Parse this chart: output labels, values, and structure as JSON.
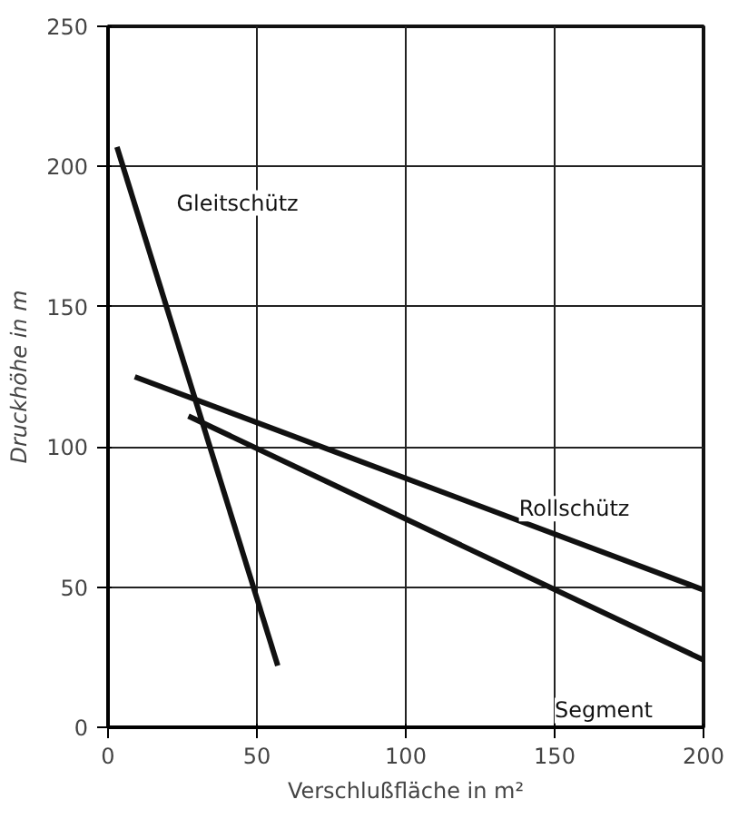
{
  "chart_data": {
    "type": "line",
    "xlabel": "Verschlußfläche in m²",
    "ylabel": "Druckhöhe in m",
    "xlim": [
      0,
      200
    ],
    "ylim": [
      0,
      250
    ],
    "xticks": [
      0,
      50,
      100,
      150,
      200
    ],
    "yticks": [
      0,
      50,
      100,
      150,
      200,
      250
    ],
    "grid": true,
    "marker": "none",
    "line_style": "solid",
    "series": [
      {
        "name": "Gleitschütz",
        "color": "#111111",
        "x": [
          3,
          57
        ],
        "values": [
          207,
          22
        ]
      },
      {
        "name": "Rollschütz",
        "color": "#111111",
        "x": [
          9,
          200
        ],
        "values": [
          125,
          49
        ]
      },
      {
        "name": "Segment",
        "color": "#111111",
        "x": [
          27,
          200
        ],
        "values": [
          111,
          24
        ]
      }
    ]
  }
}
